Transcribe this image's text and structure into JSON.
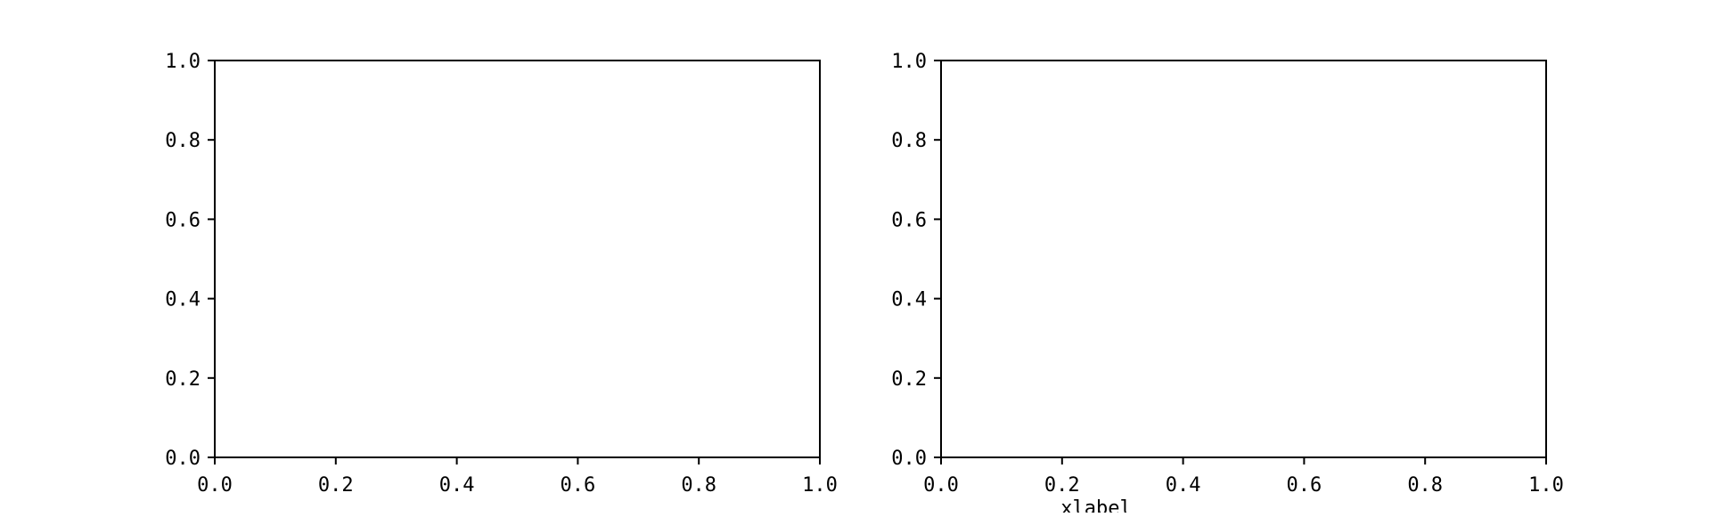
{
  "chart_data": [
    {
      "type": "line",
      "series": [],
      "x": [],
      "xlim": [
        0.0,
        1.0
      ],
      "ylim": [
        0.0,
        1.0
      ],
      "xticks": [
        "0.0",
        "0.2",
        "0.4",
        "0.6",
        "0.8",
        "1.0"
      ],
      "yticks": [
        "0.0",
        "0.2",
        "0.4",
        "0.6",
        "0.8",
        "1.0"
      ],
      "xlabel": "",
      "ylabel": "",
      "title": "",
      "grid": false
    },
    {
      "type": "line",
      "series": [],
      "x": [],
      "xlim": [
        0.0,
        1.0
      ],
      "ylim": [
        0.0,
        1.0
      ],
      "xticks": [
        "0.0",
        "0.2",
        "0.4",
        "0.6",
        "0.8",
        "1.0"
      ],
      "yticks": [
        "0.0",
        "0.2",
        "0.4",
        "0.6",
        "0.8",
        "1.0"
      ],
      "xlabel": "",
      "ylabel": "",
      "title": "",
      "grid": false
    }
  ],
  "figure": {
    "supxlabel": "xlabel"
  }
}
